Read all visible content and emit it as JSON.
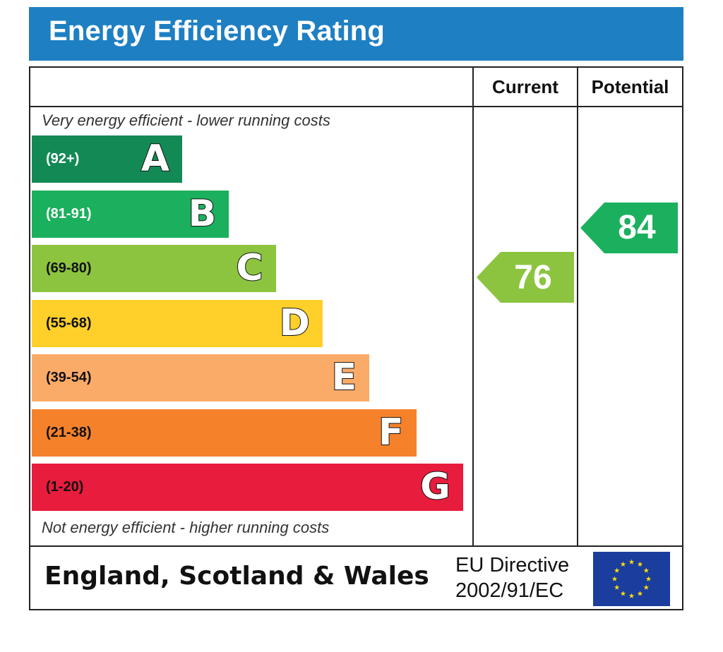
{
  "title": "Energy Efficiency Rating",
  "columns": {
    "current": "Current",
    "potential": "Potential"
  },
  "top_description": "Very energy efficient - lower running costs",
  "bottom_description": "Not energy efficient - higher running costs",
  "footer": {
    "region": "England, Scotland & Wales",
    "directive_line1": "EU Directive",
    "directive_line2": "2002/91/EC"
  },
  "chart_data": {
    "type": "bar",
    "bands": [
      {
        "letter": "A",
        "range": "(92+)",
        "color": "#138a55",
        "range_color": "#ffffff"
      },
      {
        "letter": "B",
        "range": "(81-91)",
        "color": "#1bb05d",
        "range_color": "#ffffff"
      },
      {
        "letter": "C",
        "range": "(69-80)",
        "color": "#8cc43f",
        "range_color": "#111111"
      },
      {
        "letter": "D",
        "range": "(55-68)",
        "color": "#ffd02a",
        "range_color": "#111111"
      },
      {
        "letter": "E",
        "range": "(39-54)",
        "color": "#fbab68",
        "range_color": "#111111"
      },
      {
        "letter": "F",
        "range": "(21-38)",
        "color": "#f5822b",
        "range_color": "#111111"
      },
      {
        "letter": "G",
        "range": "(1-20)",
        "color": "#e81c3c",
        "range_color": "#111111"
      }
    ],
    "current": {
      "value": 76,
      "band": "C",
      "color": "#8cc43f"
    },
    "potential": {
      "value": 84,
      "band": "B",
      "color": "#1bb05d"
    }
  }
}
